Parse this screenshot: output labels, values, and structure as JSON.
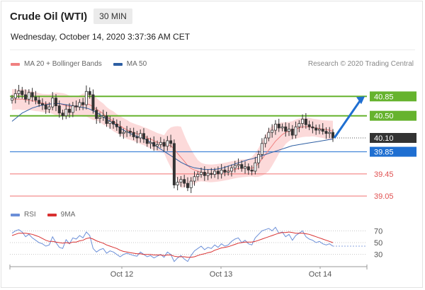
{
  "header": {
    "title": "Crude Oil (WTI)",
    "timeframe": "30 MIN",
    "datetime": "Wednesday, October 14, 2020 3:37:36 AM CET",
    "attribution": "Research © 2020 Trading Central"
  },
  "legend": {
    "ma20_label": "MA 20 + Bollinger Bands",
    "ma50_label": "MA 50",
    "rsi_label": "RSI",
    "rsi9ma_label": "9MA"
  },
  "colors": {
    "ma20": "#f08080",
    "ma50": "#2e5fa3",
    "bollinger_fill": "#fbd3d3",
    "candle": "#333333",
    "green_level": "#66b32e",
    "blue_level": "#1f6fd1",
    "red_level": "#f07070",
    "current_price": "#333333",
    "rsi": "#6b8fd8",
    "rsi9ma": "#d93030"
  },
  "chart_data": {
    "type": "line",
    "title": "Crude Oil (WTI)",
    "timeframe": "30 MIN",
    "x_tick_labels": [
      "Oct 12",
      "Oct 13",
      "Oct 14"
    ],
    "price_levels": [
      {
        "value": 40.85,
        "label": "40.85",
        "kind": "resistance"
      },
      {
        "value": 40.5,
        "label": "40.50",
        "kind": "resistance"
      },
      {
        "value": 40.1,
        "label": "40.10",
        "kind": "current"
      },
      {
        "value": 39.85,
        "label": "39.85",
        "kind": "pivot"
      },
      {
        "value": 39.45,
        "label": "39.45",
        "kind": "support"
      },
      {
        "value": 39.05,
        "label": "39.05",
        "kind": "support"
      }
    ],
    "bias": "bullish",
    "target_from": 40.1,
    "target_to": 40.85,
    "price_series": {
      "name": "Crude Oil (WTI)",
      "close": [
        40.82,
        40.9,
        40.95,
        40.88,
        40.8,
        40.92,
        40.84,
        40.78,
        40.72,
        40.7,
        40.62,
        40.66,
        40.82,
        40.68,
        40.55,
        40.5,
        40.62,
        40.56,
        40.68,
        40.66,
        40.74,
        40.7,
        40.94,
        40.88,
        40.6,
        40.45,
        40.48,
        40.5,
        40.36,
        40.4,
        40.35,
        40.3,
        40.18,
        40.2,
        40.22,
        40.2,
        40.12,
        40.1,
        40.18,
        40.08,
        40.0,
        40.02,
        39.95,
        39.98,
        40.02,
        39.95,
        40.05,
        40.0,
        39.25,
        39.3,
        39.35,
        39.28,
        39.2,
        39.32,
        39.4,
        39.44,
        39.48,
        39.42,
        39.46,
        39.44,
        39.5,
        39.45,
        39.52,
        39.48,
        39.5,
        39.56,
        39.6,
        39.62,
        39.55,
        39.58,
        39.52,
        39.5,
        39.65,
        39.8,
        40.0,
        40.1,
        40.2,
        40.24,
        40.35,
        40.28,
        40.3,
        40.22,
        40.26,
        40.15,
        40.3,
        40.36,
        40.44,
        40.34,
        40.3,
        40.28,
        40.24,
        40.26,
        40.22,
        40.18,
        40.2,
        40.1
      ],
      "price_axis_range": [
        38.95,
        41.25
      ]
    },
    "ma20": [
      40.78,
      40.8,
      40.8,
      40.8,
      40.79,
      40.78,
      40.77,
      40.76,
      40.74,
      40.73,
      40.72,
      40.71,
      40.72,
      40.73,
      40.72,
      40.7,
      40.68,
      40.67,
      40.66,
      40.66,
      40.68,
      40.7,
      40.72,
      40.7,
      40.66,
      40.62,
      40.58,
      40.54,
      40.48,
      40.44,
      40.4,
      40.36,
      40.32,
      40.28,
      40.25,
      40.22,
      40.2,
      40.18,
      40.16,
      40.14,
      40.1,
      40.08,
      40.05,
      40.02,
      40.0,
      39.98,
      39.98,
      39.96,
      39.9,
      39.82,
      39.75,
      39.68,
      39.6,
      39.55,
      39.52,
      39.5,
      39.48,
      39.46,
      39.46,
      39.45,
      39.46,
      39.47,
      39.48,
      39.49,
      39.5,
      39.52,
      39.53,
      39.55,
      39.55,
      39.56,
      39.56,
      39.55,
      39.58,
      39.64,
      39.72,
      39.8,
      39.88,
      39.96,
      40.04,
      40.1,
      40.16,
      40.2,
      40.22,
      40.24,
      40.26,
      40.28,
      40.3,
      40.3,
      40.3,
      40.29,
      40.28,
      40.27,
      40.26,
      40.25,
      40.24,
      40.22
    ],
    "ma50": [
      40.4,
      40.45,
      40.5,
      40.55,
      40.58,
      40.61,
      40.64,
      40.66,
      40.68,
      40.69,
      40.7,
      40.71,
      40.72,
      40.72,
      40.72,
      40.71,
      40.7,
      40.69,
      40.68,
      40.67,
      40.66,
      40.65,
      40.64,
      40.62,
      40.59,
      40.56,
      40.52,
      40.48,
      40.44,
      40.4,
      40.36,
      40.32,
      40.28,
      40.24,
      40.21,
      40.18,
      40.15,
      40.13,
      40.11,
      40.09,
      40.06,
      40.02,
      39.98,
      39.94,
      39.9,
      39.86,
      39.82,
      39.78,
      39.74,
      39.7,
      39.66,
      39.63,
      39.6,
      39.58,
      39.56,
      39.55,
      39.54,
      39.53,
      39.53,
      39.53,
      39.53,
      39.54,
      39.55,
      39.57,
      39.59,
      39.61,
      39.63,
      39.65,
      39.67,
      39.69,
      39.71,
      39.72,
      39.74,
      39.76,
      39.78,
      39.8,
      39.82,
      39.84,
      39.86,
      39.88,
      39.9,
      39.92,
      39.94,
      39.96,
      39.97,
      39.98,
      39.99,
      40.0,
      40.01,
      40.02,
      40.03,
      40.04,
      40.05,
      40.06,
      40.07,
      40.08
    ],
    "rsi_panel": {
      "levels": [
        70,
        50,
        30
      ],
      "range": [
        20,
        80
      ],
      "rsi": [
        66,
        70,
        72,
        68,
        60,
        64,
        58,
        54,
        50,
        48,
        44,
        46,
        60,
        50,
        42,
        40,
        55,
        48,
        58,
        56,
        62,
        58,
        68,
        62,
        40,
        34,
        38,
        40,
        32,
        36,
        34,
        30,
        26,
        30,
        32,
        30,
        28,
        27,
        34,
        30,
        26,
        28,
        24,
        27,
        30,
        25,
        34,
        30,
        18,
        24,
        28,
        22,
        18,
        28,
        36,
        40,
        44,
        38,
        42,
        40,
        46,
        42,
        48,
        44,
        46,
        52,
        56,
        58,
        50,
        54,
        48,
        46,
        58,
        64,
        70,
        72,
        74,
        70,
        76,
        66,
        68,
        60,
        64,
        54,
        62,
        66,
        70,
        60,
        56,
        54,
        50,
        52,
        48,
        46,
        48,
        44
      ],
      "rsi9ma": [
        62,
        64,
        66,
        66,
        66,
        65,
        64,
        62,
        60,
        57,
        54,
        52,
        52,
        51,
        50,
        49,
        50,
        49,
        51,
        51,
        53,
        54,
        57,
        58,
        56,
        53,
        51,
        49,
        46,
        44,
        42,
        40,
        37,
        35,
        34,
        33,
        32,
        31,
        31,
        30,
        30,
        30,
        29,
        29,
        29,
        28,
        29,
        29,
        27,
        26,
        26,
        26,
        25,
        25,
        26,
        28,
        30,
        31,
        33,
        34,
        37,
        39,
        41,
        42,
        43,
        45,
        47,
        49,
        50,
        51,
        51,
        51,
        52,
        54,
        56,
        58,
        60,
        62,
        64,
        66,
        67,
        67,
        68,
        67,
        66,
        66,
        66,
        65,
        64,
        62,
        60,
        58,
        56,
        54,
        52,
        50
      ]
    }
  }
}
